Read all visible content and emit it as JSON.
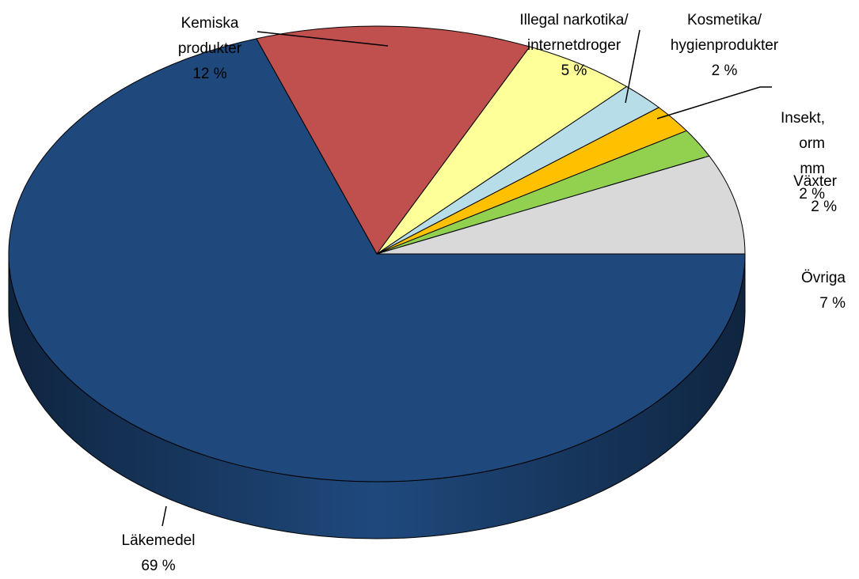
{
  "chart_data": {
    "type": "pie3d",
    "categories": [
      "Läkemedel",
      "Kemiska\nprodukter",
      "Illegal narkotika/\ninternetdroger",
      "Kosmetika/\nhygienprodukter",
      "Insekt,\norm mm",
      "Växter",
      "Övriga"
    ],
    "values": [
      69,
      12,
      5,
      2,
      2,
      2,
      7
    ],
    "value_labels": [
      "69 %",
      "12 %",
      "5 %",
      "2 %",
      "2 %",
      "2 %",
      "7 %"
    ],
    "colors": [
      "#1f497d",
      "#c0504d",
      "#ffff99",
      "#b7dde8",
      "#ffc000",
      "#92d050",
      "#d9d9d9"
    ]
  }
}
